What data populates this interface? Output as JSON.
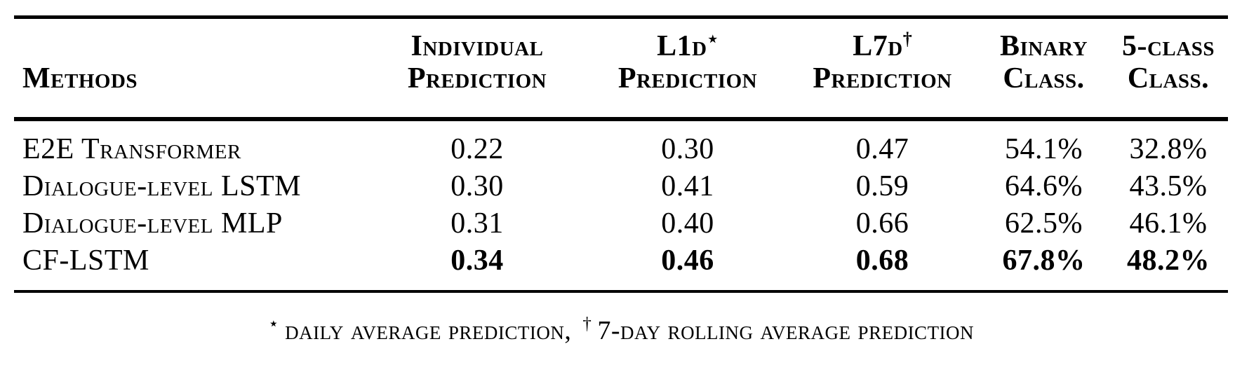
{
  "table": {
    "columns": [
      {
        "line1": "",
        "sup": "",
        "line2": "Methods"
      },
      {
        "line1": "Individual",
        "sup": "",
        "line2": "Prediction"
      },
      {
        "line1": "L1d",
        "sup": "⋆",
        "line2": "Prediction"
      },
      {
        "line1": "L7d",
        "sup": "†",
        "line2": "Prediction"
      },
      {
        "line1": "Binary",
        "sup": "",
        "line2": "Class."
      },
      {
        "line1": "5-class",
        "sup": "",
        "line2": "Class."
      }
    ],
    "rows": [
      {
        "method": "E2E Transformer",
        "individual": "0.22",
        "l1d": "0.30",
        "l7d": "0.47",
        "binary": "54.1%",
        "five_class": "32.8%"
      },
      {
        "method": "Dialogue-level LSTM",
        "individual": "0.30",
        "l1d": "0.41",
        "l7d": "0.59",
        "binary": "64.6%",
        "five_class": "43.5%"
      },
      {
        "method": "Dialogue-level MLP",
        "individual": "0.31",
        "l1d": "0.40",
        "l7d": "0.66",
        "binary": "62.5%",
        "five_class": "46.1%"
      },
      {
        "method": "CF-LSTM",
        "individual": "0.34",
        "l1d": "0.46",
        "l7d": "0.68",
        "binary": "67.8%",
        "five_class": "48.2%"
      }
    ],
    "footnote": {
      "star": "⋆",
      "star_text": "daily average prediction,",
      "dagger": "†",
      "dagger_text": "7-day rolling average prediction"
    }
  },
  "colors": {
    "text": "#000000",
    "background": "#ffffff",
    "rule": "#000000"
  }
}
